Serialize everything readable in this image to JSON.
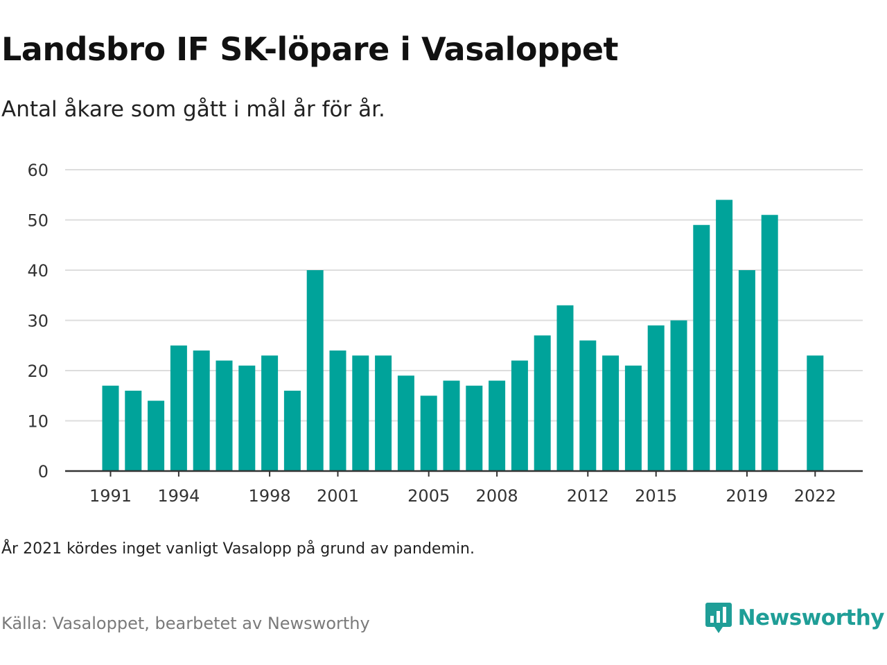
{
  "header": {
    "title": "Landsbro IF SK-löpare i Vasaloppet",
    "subtitle": "Antal åkare som gått i mål år för år."
  },
  "footer": {
    "note": "År 2021 kördes inget vanligt Vasalopp på grund av pandemin.",
    "source": "Källa: Vasaloppet, bearbetet av Newsworthy",
    "brand": "Newsworthy"
  },
  "colors": {
    "bar": "#00A39A",
    "grid": "#dddddd",
    "axis": "#333333",
    "brand": "#1f9e97"
  },
  "icons": {
    "brand_logo": "newsworthy-logo-icon"
  },
  "chart_data": {
    "type": "bar",
    "categories": [
      1991,
      1992,
      1993,
      1994,
      1995,
      1996,
      1997,
      1998,
      1999,
      2000,
      2001,
      2002,
      2003,
      2004,
      2005,
      2006,
      2007,
      2008,
      2009,
      2010,
      2011,
      2012,
      2013,
      2014,
      2015,
      2016,
      2017,
      2018,
      2019,
      2020,
      2021,
      2022
    ],
    "values": [
      17,
      16,
      14,
      25,
      24,
      22,
      21,
      23,
      16,
      40,
      24,
      23,
      23,
      19,
      15,
      18,
      17,
      18,
      22,
      27,
      33,
      26,
      23,
      21,
      29,
      30,
      49,
      54,
      40,
      51,
      null,
      23
    ],
    "xticks": [
      1991,
      1994,
      1998,
      2001,
      2005,
      2008,
      2012,
      2015,
      2019,
      2022
    ],
    "yticks": [
      0,
      10,
      20,
      30,
      40,
      50,
      60
    ],
    "ylim": [
      0,
      60
    ],
    "grid": true,
    "legend": false
  }
}
